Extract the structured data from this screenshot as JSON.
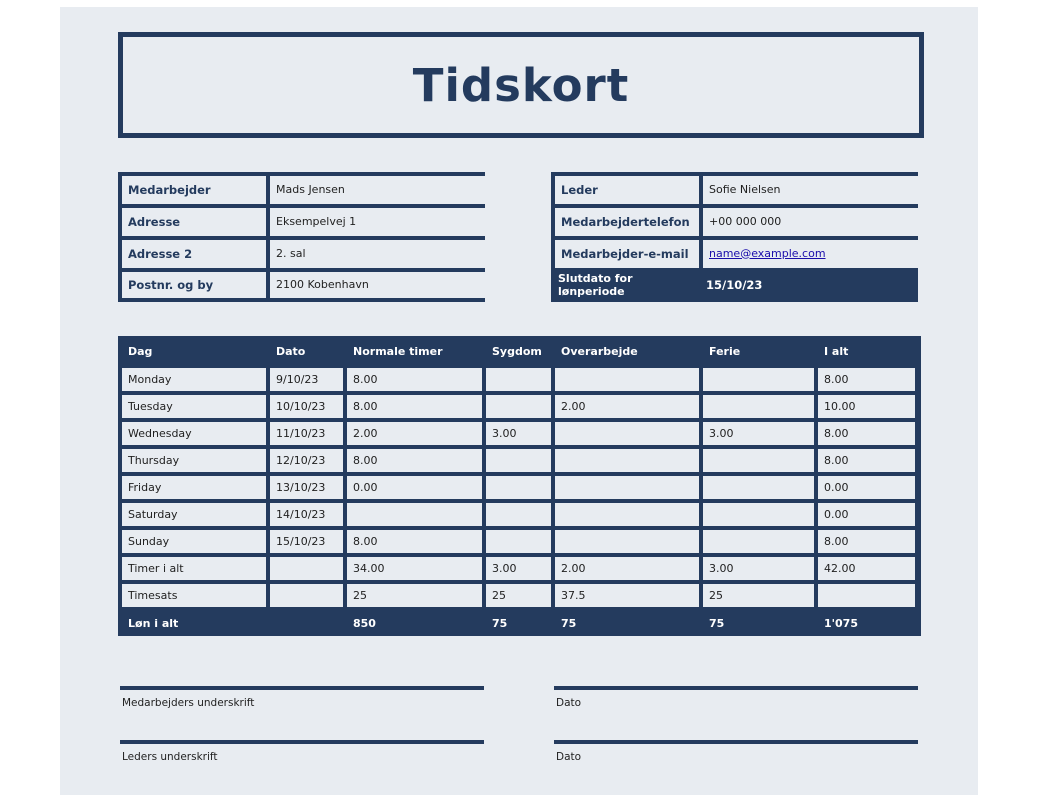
{
  "title": "Tidskort",
  "employee": {
    "rows": [
      {
        "label": "Medarbejder",
        "value": "Mads Jensen"
      },
      {
        "label": "Adresse",
        "value": "Eksempelvej 1"
      },
      {
        "label": "Adresse 2",
        "value": "2. sal"
      },
      {
        "label": "Postnr. og by",
        "value": "2100 Kobenhavn"
      }
    ]
  },
  "manager": {
    "rows": [
      {
        "label": "Leder",
        "value": "Sofie Nielsen"
      },
      {
        "label": "Medarbejdertelefon",
        "value": "+00 000 000"
      },
      {
        "label": "Medarbejder-e-mail",
        "value": "name@example.com"
      }
    ],
    "period_label": "Slutdato for lønperiode",
    "period_value": "15/10/23"
  },
  "table": {
    "headers": [
      "Dag",
      "Dato",
      "Normale timer",
      "Sygdom",
      "Overarbejde",
      "Ferie",
      "I alt"
    ],
    "rows": [
      [
        "Monday",
        "9/10/23",
        "8.00",
        "",
        "",
        "",
        "8.00"
      ],
      [
        "Tuesday",
        "10/10/23",
        "8.00",
        "",
        "2.00",
        "",
        "10.00"
      ],
      [
        "Wednesday",
        "11/10/23",
        "2.00",
        "3.00",
        "",
        "3.00",
        "8.00"
      ],
      [
        "Thursday",
        "12/10/23",
        "8.00",
        "",
        "",
        "",
        "8.00"
      ],
      [
        "Friday",
        "13/10/23",
        "0.00",
        "",
        "",
        "",
        "0.00"
      ],
      [
        "Saturday",
        "14/10/23",
        "",
        "",
        "",
        "",
        "0.00"
      ],
      [
        "Sunday",
        "15/10/23",
        "8.00",
        "",
        "",
        "",
        "8.00"
      ],
      [
        "Timer i alt",
        "",
        "34.00",
        "3.00",
        "2.00",
        "3.00",
        "42.00"
      ],
      [
        "Timesats",
        "",
        "25",
        "25",
        "37.5",
        "25",
        ""
      ]
    ],
    "footer": [
      "Løn i alt",
      "",
      "850",
      "75",
      "75",
      "75",
      "1'075"
    ]
  },
  "signatures": {
    "employee_label": "Medarbejders underskrift",
    "employee_date_label": "Dato",
    "manager_label": "Leders underskrift",
    "manager_date_label": "Dato"
  },
  "colors": {
    "accent": "#243b5e",
    "sheet": "#e8ecf1"
  }
}
